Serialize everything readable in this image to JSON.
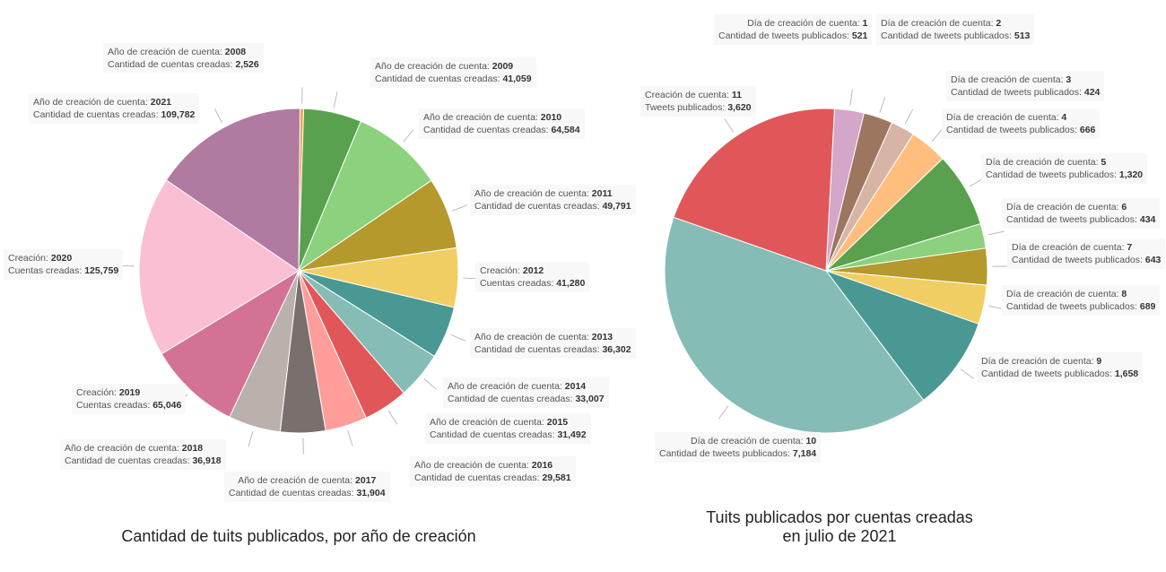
{
  "chart_data": [
    {
      "type": "pie",
      "title": "Cantidad de tuits publicados, por año de creación",
      "slices": [
        {
          "l1": "Año de creación de cuenta:",
          "key": "2008",
          "l2": "Cantidad de cuentas creadas:",
          "label_value": "2,526",
          "value": 2526,
          "color": "#f5a34b"
        },
        {
          "l1": "Año de creación de cuenta:",
          "key": "2009",
          "l2": "Cantidad de cuentas creadas:",
          "label_value": "41,059",
          "value": 41059,
          "color": "#59a14f"
        },
        {
          "l1": "Año de creación de cuenta:",
          "key": "2010",
          "l2": "Cantidad de cuentas creadas:",
          "label_value": "64,584",
          "value": 64584,
          "color": "#8cd17d"
        },
        {
          "l1": "Año de creación de cuenta:",
          "key": "2011",
          "l2": "Cantidad de cuentas creadas:",
          "label_value": "49,791",
          "value": 49791,
          "color": "#b6992d"
        },
        {
          "l1": "Creación:",
          "key": "2012",
          "l2": "Cuentas creadas:",
          "label_value": "41,280",
          "value": 41280,
          "color": "#f1ce63"
        },
        {
          "l1": "Año de creación de cuenta:",
          "key": "2013",
          "l2": "Cantidad de cuentas creadas:",
          "label_value": "36,302",
          "value": 36302,
          "color": "#499894"
        },
        {
          "l1": "Año de creación de cuenta:",
          "key": "2014",
          "l2": "Cantidad de cuentas creadas:",
          "label_value": "33,007",
          "value": 33007,
          "color": "#86bcb6"
        },
        {
          "l1": "Año de creación de cuenta:",
          "key": "2015",
          "l2": "Cantidad de cuentas creadas:",
          "label_value": "31,492",
          "value": 31492,
          "color": "#e15759"
        },
        {
          "l1": "Año de creación de cuenta:",
          "key": "2016",
          "l2": "Cantidad de cuentas creadas:",
          "label_value": "29,581",
          "value": 29581,
          "color": "#ff9d9a"
        },
        {
          "l1": "Año de creación de cuenta:",
          "key": "2017",
          "l2": "Cantidad de cuentas creadas:",
          "label_value": "31,904",
          "value": 31904,
          "color": "#79706e"
        },
        {
          "l1": "Año de creación de cuenta:",
          "key": "2018",
          "l2": "Cantidad de cuentas creadas:",
          "label_value": "36,918",
          "value": 36918,
          "color": "#bab0ac"
        },
        {
          "l1": "Creación:",
          "key": "2019",
          "l2": "Cuentas creadas:",
          "label_value": "65,046",
          "value": 65046,
          "color": "#d37295"
        },
        {
          "l1": "Creación:",
          "key": "2020",
          "l2": "Cuentas creadas:",
          "label_value": "125,759",
          "value": 125759,
          "color": "#fabfd2"
        },
        {
          "l1": "Año de creación de cuenta:",
          "key": "2021",
          "l2": "Cantidad de cuentas creadas:",
          "label_value": "109,782",
          "value": 109782,
          "color": "#b07aa1"
        }
      ]
    },
    {
      "type": "pie",
      "title_line1": "Tuits publicados por cuentas creadas",
      "title_line2": "en julio de 2021",
      "slices": [
        {
          "l1": "Día de creación de cuenta:",
          "key": "1",
          "l2": "Cantidad de tweets publicados:",
          "label_value": "521",
          "value": 521,
          "color": "#d4a6c8"
        },
        {
          "l1": "Día de creación de cuenta:",
          "key": "2",
          "l2": "Cantidad de tweets publicados:",
          "label_value": "513",
          "value": 513,
          "color": "#9d7660"
        },
        {
          "l1": "Día de creación de cuenta:",
          "key": "3",
          "l2": "Cantidad de tweets publicados:",
          "label_value": "424",
          "value": 424,
          "color": "#d7b5a6"
        },
        {
          "l1": "Día de creación de cuenta:",
          "key": "4",
          "l2": "Cantidad de tweets publicados:",
          "label_value": "666",
          "value": 666,
          "color": "#ffbe7d"
        },
        {
          "l1": "Día de creación de cuenta:",
          "key": "5",
          "l2": "Cantidad de tweets publicados:",
          "label_value": "1,320",
          "value": 1320,
          "color": "#59a14f"
        },
        {
          "l1": "Día de creación de cuenta:",
          "key": "6",
          "l2": "Cantidad de tweets publicados:",
          "label_value": "434",
          "value": 434,
          "color": "#8cd17d"
        },
        {
          "l1": "Día de creación de cuenta:",
          "key": "7",
          "l2": "Cantidad de tweets publicados:",
          "label_value": "643",
          "value": 643,
          "color": "#b6992d"
        },
        {
          "l1": "Día de creación de cuenta:",
          "key": "8",
          "l2": "Cantidad de tweets publicados:",
          "label_value": "689",
          "value": 689,
          "color": "#f1ce63"
        },
        {
          "l1": "Día de creación de cuenta:",
          "key": "9",
          "l2": "Cantidad de tweets publicados:",
          "label_value": "1,658",
          "value": 1658,
          "color": "#499894"
        },
        {
          "l1": "Día de creación de cuenta:",
          "key": "10",
          "l2": "Cantidad de tweets publicados:",
          "label_value": "7,184",
          "value": 7184,
          "color": "#86bcb6"
        },
        {
          "l1": "Creación de cuenta:",
          "key": "11",
          "l2": "Tweets publicados:",
          "label_value": "3,620",
          "value": 3620,
          "color": "#e15759"
        }
      ]
    }
  ]
}
